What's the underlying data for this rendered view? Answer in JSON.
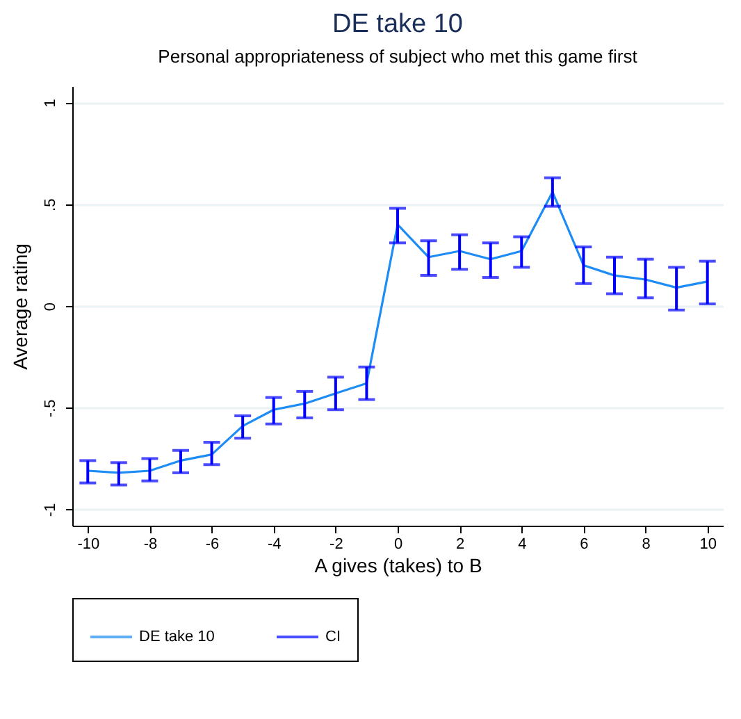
{
  "chart_data": {
    "type": "line",
    "title": "DE take 10",
    "subtitle": "Personal appropriateness of subject who met this game first",
    "xlabel": "A gives (takes) to B",
    "ylabel": "Average rating",
    "x": [
      -10,
      -9,
      -8,
      -7,
      -6,
      -5,
      -4,
      -3,
      -2,
      -1,
      0,
      1,
      2,
      3,
      4,
      5,
      6,
      7,
      8,
      9,
      10
    ],
    "series": [
      {
        "name": "DE take 10",
        "color": "#1e8cf5",
        "values": [
          -0.81,
          -0.82,
          -0.81,
          -0.76,
          -0.73,
          -0.59,
          -0.51,
          -0.48,
          -0.43,
          -0.38,
          0.4,
          0.24,
          0.27,
          0.23,
          0.27,
          0.56,
          0.2,
          0.15,
          0.13,
          0.09,
          0.12
        ],
        "errors": [
          [
            -0.87,
            -0.76
          ],
          [
            -0.88,
            -0.77
          ],
          [
            -0.86,
            -0.75
          ],
          [
            -0.82,
            -0.71
          ],
          [
            -0.78,
            -0.67
          ],
          [
            -0.65,
            -0.54
          ],
          [
            -0.58,
            -0.45
          ],
          [
            -0.55,
            -0.42
          ],
          [
            -0.51,
            -0.35
          ],
          [
            -0.46,
            -0.3
          ],
          [
            0.31,
            0.48
          ],
          [
            0.15,
            0.32
          ],
          [
            0.18,
            0.35
          ],
          [
            0.14,
            0.31
          ],
          [
            0.19,
            0.34
          ],
          [
            0.49,
            0.63
          ],
          [
            0.11,
            0.29
          ],
          [
            0.06,
            0.24
          ],
          [
            0.04,
            0.23
          ],
          [
            -0.02,
            0.19
          ],
          [
            0.01,
            0.22
          ]
        ]
      }
    ],
    "annotations": [
      "CI"
    ],
    "xlim": [
      -10.5,
      10.5
    ],
    "ylim": [
      -1.08,
      1.08
    ],
    "xticks": [
      -10,
      -8,
      -6,
      -4,
      -2,
      0,
      2,
      4,
      6,
      8,
      10
    ],
    "yticks": [
      {
        "value": -1,
        "label": "-1"
      },
      {
        "value": -0.5,
        "label": "-.5"
      },
      {
        "value": 0,
        "label": "0"
      },
      {
        "value": 0.5,
        "label": ".5"
      },
      {
        "value": 1,
        "label": "1"
      }
    ],
    "grid": "y",
    "legend": "bottom"
  }
}
